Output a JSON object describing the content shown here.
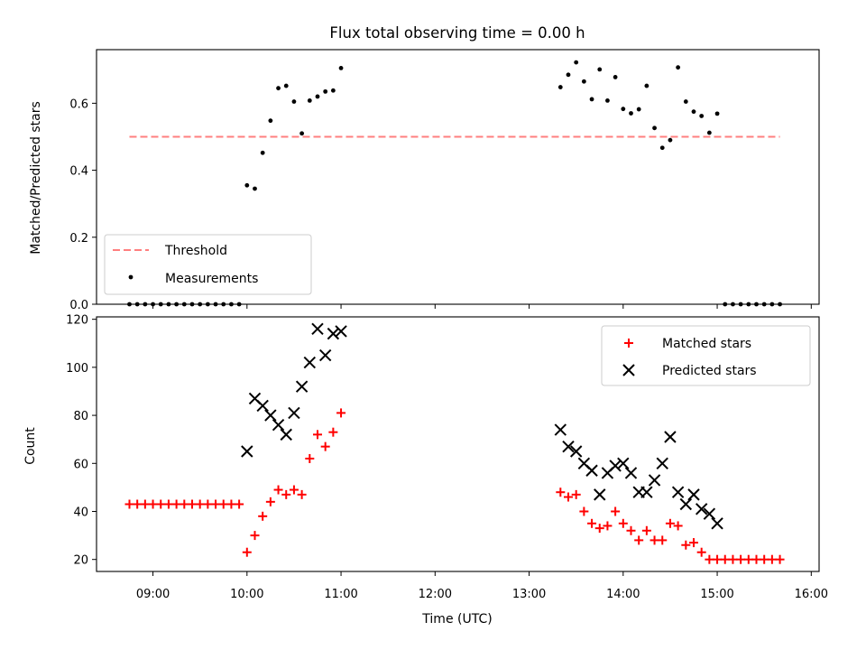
{
  "chart_data": [
    {
      "type": "scatter",
      "title": "Flux total observing time = 0.00 h",
      "xlabel": "",
      "ylabel": "Matched/Predicted stars",
      "xlim": [
        "08:24",
        "16:05"
      ],
      "ylim": [
        0,
        0.76
      ],
      "yticks": [
        0.0,
        0.2,
        0.4,
        0.6
      ],
      "ytick_labels": [
        "0.0",
        "0.2",
        "0.4",
        "0.6"
      ],
      "legend_placement": "lower-left",
      "threshold": {
        "name": "Threshold",
        "value": 0.5,
        "x_range": [
          "08:45",
          "15:40"
        ],
        "color": "#ff7f7f",
        "style": "dashed"
      },
      "series": [
        {
          "name": "Measurements",
          "color": "#000000",
          "marker": "dot",
          "x": [
            "08:45",
            "08:50",
            "08:55",
            "09:00",
            "09:05",
            "09:10",
            "09:15",
            "09:20",
            "09:25",
            "09:30",
            "09:35",
            "09:40",
            "09:45",
            "09:50",
            "09:55",
            "10:00",
            "10:05",
            "10:10",
            "10:15",
            "10:20",
            "10:25",
            "10:30",
            "10:35",
            "10:40",
            "10:45",
            "10:50",
            "10:55",
            "11:00",
            "13:20",
            "13:25",
            "13:30",
            "13:35",
            "13:40",
            "13:45",
            "13:50",
            "13:55",
            "14:00",
            "14:05",
            "14:10",
            "14:15",
            "14:20",
            "14:25",
            "14:30",
            "14:35",
            "14:40",
            "14:45",
            "14:50",
            "14:55",
            "15:00",
            "15:05",
            "15:10",
            "15:15",
            "15:20",
            "15:25",
            "15:30",
            "15:35",
            "15:40"
          ],
          "y": [
            0,
            0,
            0,
            0,
            0,
            0,
            0,
            0,
            0,
            0,
            0,
            0,
            0,
            0,
            0,
            0.355,
            0.345,
            0.452,
            0.548,
            0.645,
            0.652,
            0.605,
            0.51,
            0.608,
            0.62,
            0.635,
            0.638,
            0.705,
            0.648,
            0.685,
            0.722,
            0.665,
            0.612,
            0.701,
            0.608,
            0.678,
            0.583,
            0.57,
            0.582,
            0.652,
            0.526,
            0.467,
            0.49,
            0.707,
            0.605,
            0.575,
            0.562,
            0.512,
            0.569,
            0,
            0,
            0,
            0,
            0,
            0,
            0,
            0
          ]
        }
      ]
    },
    {
      "type": "scatter",
      "title": "",
      "xlabel": "Time (UTC)",
      "ylabel": "Count",
      "xlim": [
        "08:24",
        "16:05"
      ],
      "xticks": [
        "09:00",
        "10:00",
        "11:00",
        "12:00",
        "13:00",
        "14:00",
        "15:00",
        "16:00"
      ],
      "ylim": [
        15,
        121
      ],
      "yticks": [
        20,
        40,
        60,
        80,
        100,
        120
      ],
      "ytick_labels": [
        "20",
        "40",
        "60",
        "80",
        "100",
        "120"
      ],
      "legend_placement": "upper-right",
      "series": [
        {
          "name": "Matched stars",
          "color": "#ff0000",
          "marker": "plus",
          "x": [
            "08:45",
            "08:50",
            "08:55",
            "09:00",
            "09:05",
            "09:10",
            "09:15",
            "09:20",
            "09:25",
            "09:30",
            "09:35",
            "09:40",
            "09:45",
            "09:50",
            "09:55",
            "10:00",
            "10:05",
            "10:10",
            "10:15",
            "10:20",
            "10:25",
            "10:30",
            "10:35",
            "10:40",
            "10:45",
            "10:50",
            "10:55",
            "11:00",
            "13:20",
            "13:25",
            "13:30",
            "13:35",
            "13:40",
            "13:45",
            "13:50",
            "13:55",
            "14:00",
            "14:05",
            "14:10",
            "14:15",
            "14:20",
            "14:25",
            "14:30",
            "14:35",
            "14:40",
            "14:45",
            "14:50",
            "14:55",
            "15:00",
            "15:05",
            "15:10",
            "15:15",
            "15:20",
            "15:25",
            "15:30",
            "15:35",
            "15:40"
          ],
          "y": [
            43,
            43,
            43,
            43,
            43,
            43,
            43,
            43,
            43,
            43,
            43,
            43,
            43,
            43,
            43,
            23,
            30,
            38,
            44,
            49,
            47,
            49,
            47,
            62,
            72,
            67,
            73,
            81,
            48,
            46,
            47,
            40,
            35,
            33,
            34,
            40,
            35,
            32,
            28,
            32,
            28,
            28,
            35,
            34,
            26,
            27,
            23,
            20,
            20,
            20,
            20,
            20,
            20,
            20,
            20,
            20,
            20
          ]
        },
        {
          "name": "Predicted stars",
          "color": "#000000",
          "marker": "x",
          "x": [
            "10:00",
            "10:05",
            "10:10",
            "10:15",
            "10:20",
            "10:25",
            "10:30",
            "10:35",
            "10:40",
            "10:45",
            "10:50",
            "10:55",
            "11:00",
            "13:20",
            "13:25",
            "13:30",
            "13:35",
            "13:40",
            "13:45",
            "13:50",
            "13:55",
            "14:00",
            "14:05",
            "14:10",
            "14:15",
            "14:20",
            "14:25",
            "14:30",
            "14:35",
            "14:40",
            "14:45",
            "14:50",
            "14:55",
            "15:00"
          ],
          "y": [
            65,
            87,
            84,
            80,
            76,
            72,
            81,
            92,
            102,
            116,
            105,
            114,
            115,
            74,
            67,
            65,
            60,
            57,
            47,
            56,
            59,
            60,
            56,
            48,
            48,
            53,
            60,
            71,
            48,
            43,
            47,
            41,
            39,
            35
          ]
        }
      ]
    }
  ]
}
